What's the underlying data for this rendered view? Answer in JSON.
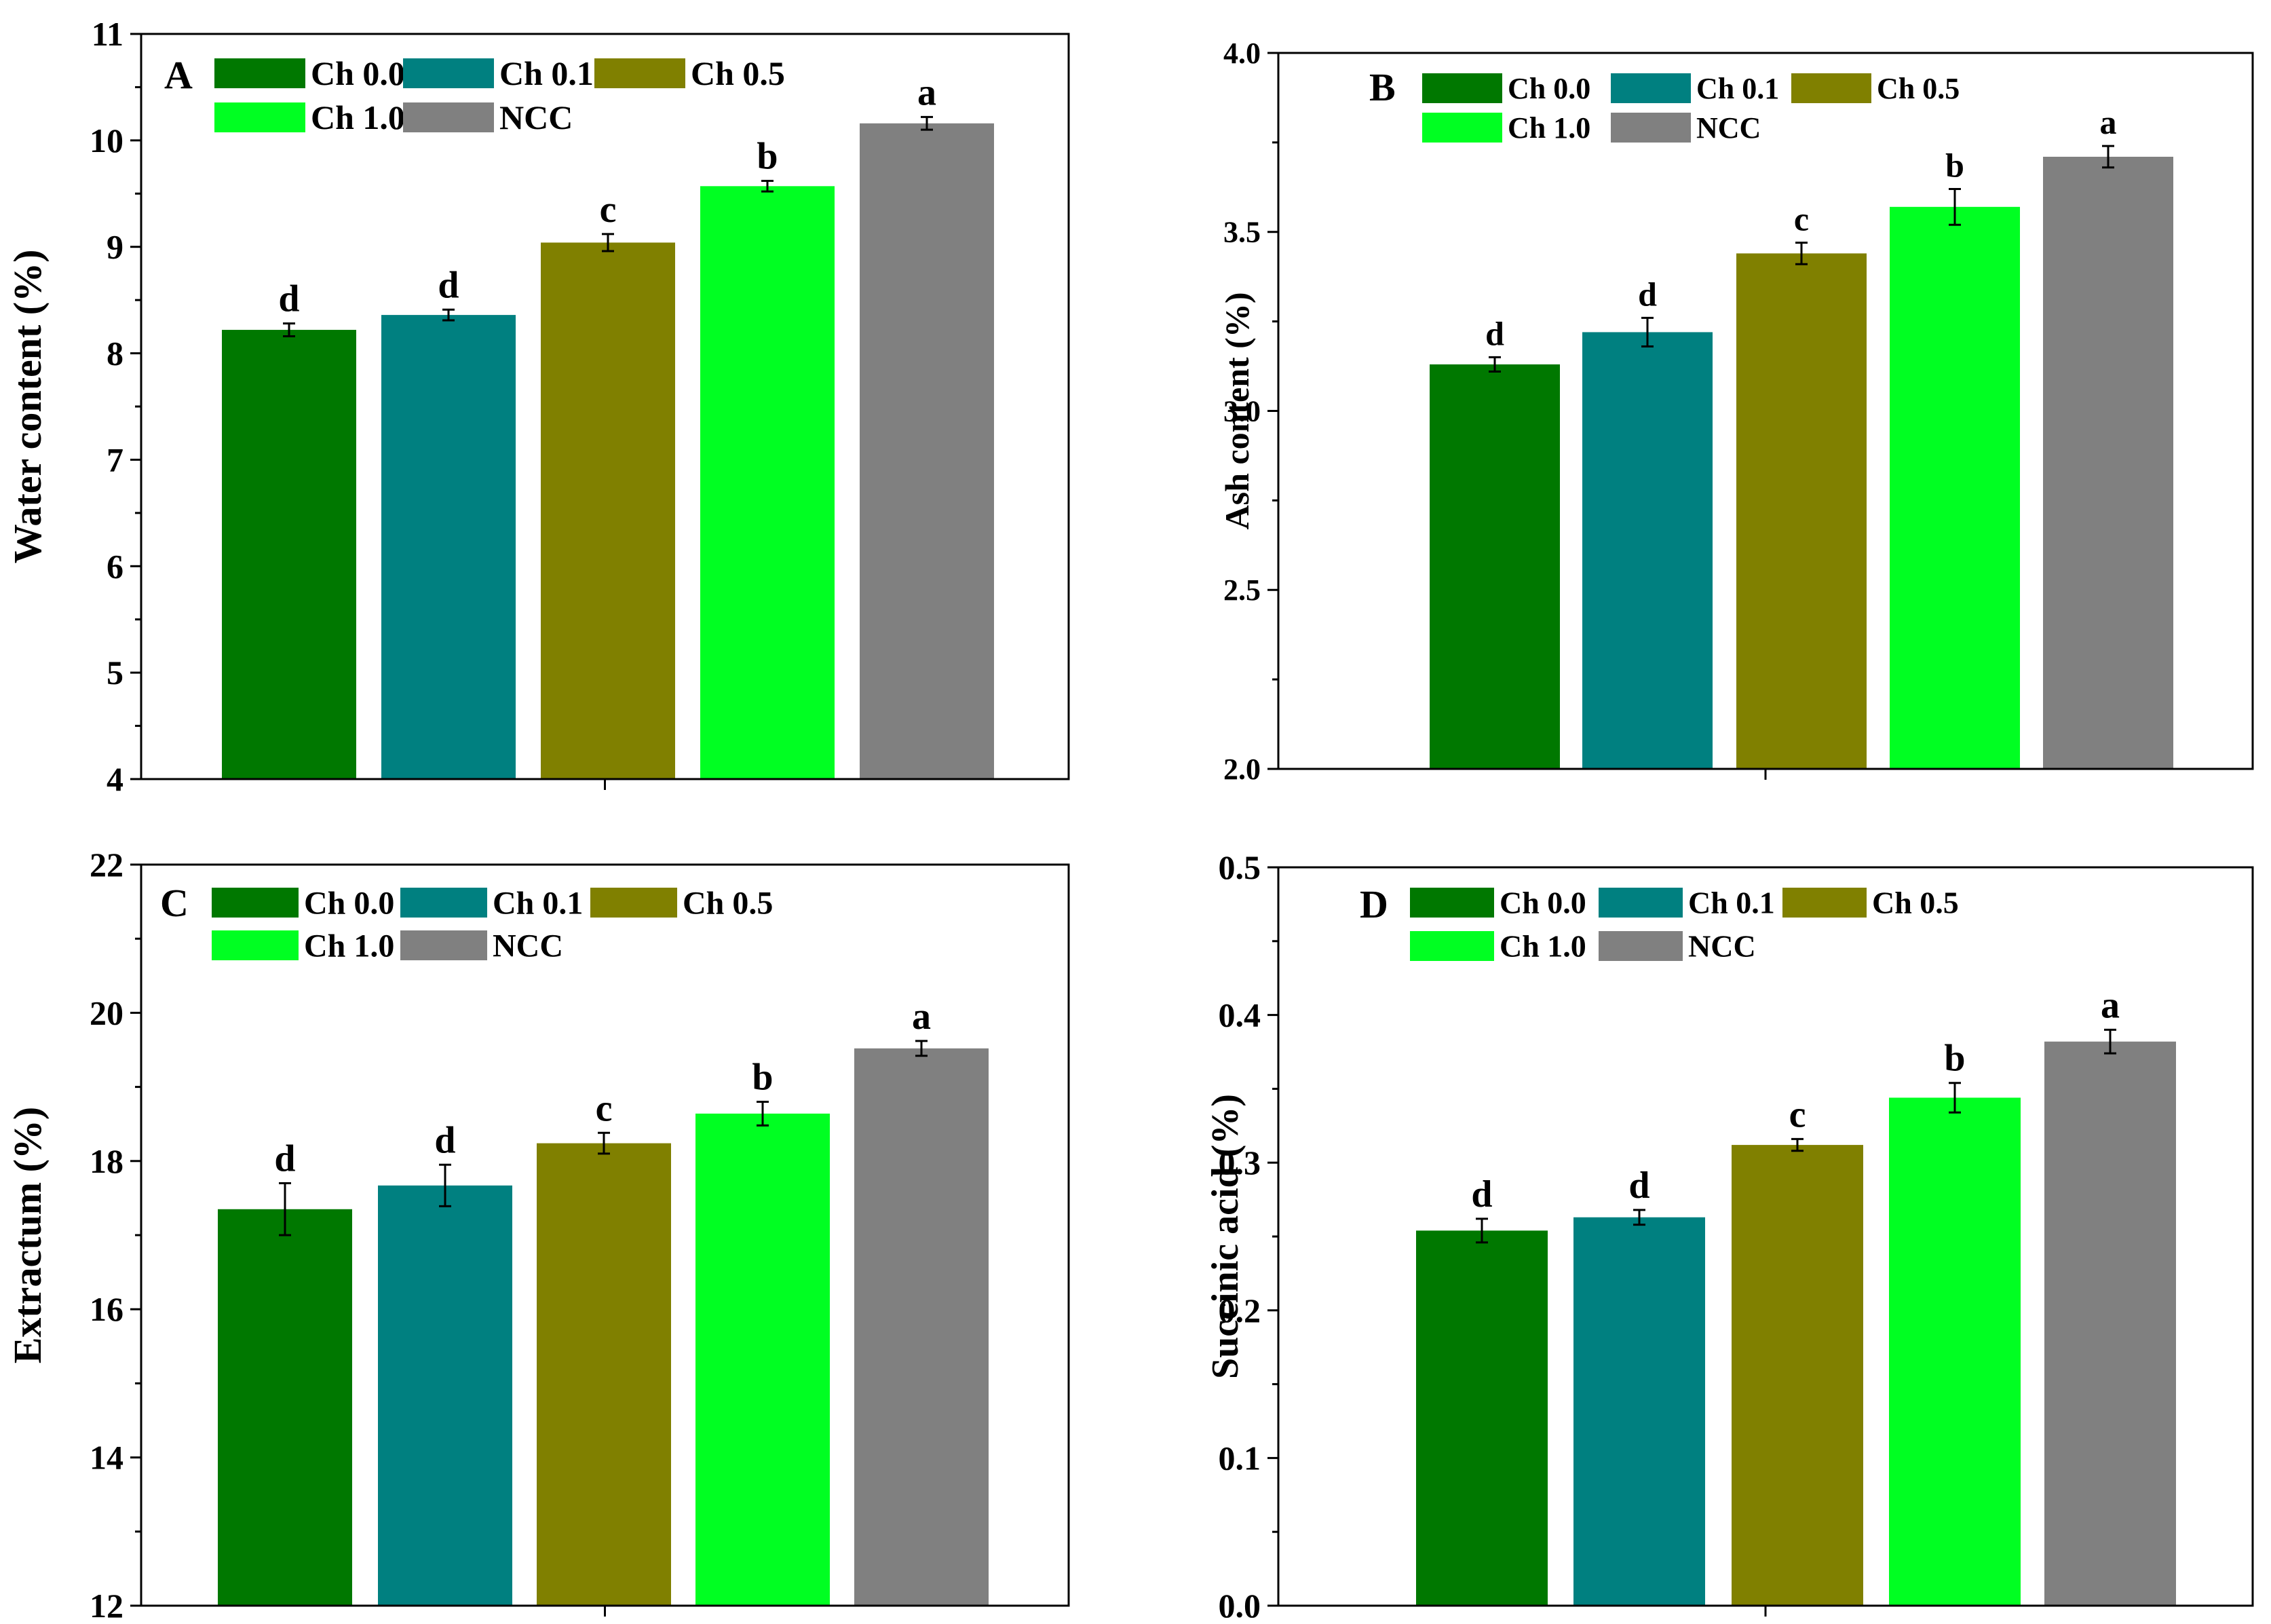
{
  "chart_data": [
    {
      "type": "bar",
      "panel_label": "A",
      "ylabel": "Water content (%)",
      "ylim": [
        4,
        11
      ],
      "yticks": [
        4,
        5,
        6,
        7,
        8,
        9,
        10,
        11
      ],
      "ytick_labels": [
        "4",
        "5",
        "6",
        "7",
        "8",
        "9",
        "10",
        "11"
      ],
      "legend_position": "top-left",
      "series": [
        {
          "name": "Ch 0.0",
          "color": "#007800",
          "value": 8.22,
          "error": 0.06,
          "letter": "d"
        },
        {
          "name": "Ch 0.1",
          "color": "#008080",
          "value": 8.36,
          "error": 0.05,
          "letter": "d"
        },
        {
          "name": "Ch 0.5",
          "color": "#808000",
          "value": 9.04,
          "error": 0.08,
          "letter": "c"
        },
        {
          "name": "Ch 1.0",
          "color": "#00ff22",
          "value": 9.57,
          "error": 0.05,
          "letter": "b"
        },
        {
          "name": "NCC",
          "color": "#808080",
          "value": 10.16,
          "error": 0.06,
          "letter": "a"
        }
      ]
    },
    {
      "type": "bar",
      "panel_label": "B",
      "ylabel": "Ash content (%)",
      "ylim": [
        2.0,
        4.0
      ],
      "yticks": [
        2.0,
        2.5,
        3.0,
        3.5,
        4.0
      ],
      "ytick_labels": [
        "2.0",
        "2.5",
        "3.0",
        "3.5",
        "4.0"
      ],
      "legend_position": "top-left",
      "series": [
        {
          "name": "Ch 0.0",
          "color": "#007800",
          "value": 3.13,
          "error": 0.02,
          "letter": "d"
        },
        {
          "name": "Ch 0.1",
          "color": "#008080",
          "value": 3.22,
          "error": 0.04,
          "letter": "d"
        },
        {
          "name": "Ch 0.5",
          "color": "#808000",
          "value": 3.44,
          "error": 0.03,
          "letter": "c"
        },
        {
          "name": "Ch 1.0",
          "color": "#00ff22",
          "value": 3.57,
          "error": 0.05,
          "letter": "b"
        },
        {
          "name": "NCC",
          "color": "#808080",
          "value": 3.71,
          "error": 0.03,
          "letter": "a"
        }
      ]
    },
    {
      "type": "bar",
      "panel_label": "C",
      "ylabel": "Extractum (%)",
      "ylim": [
        12,
        22
      ],
      "yticks": [
        12,
        14,
        16,
        18,
        20,
        22
      ],
      "ytick_labels": [
        "12",
        "14",
        "16",
        "18",
        "20",
        "22"
      ],
      "legend_position": "top-left",
      "series": [
        {
          "name": "Ch 0.0",
          "color": "#007800",
          "value": 17.35,
          "error": 0.35,
          "letter": "d"
        },
        {
          "name": "Ch 0.1",
          "color": "#008080",
          "value": 17.67,
          "error": 0.28,
          "letter": "d"
        },
        {
          "name": "Ch 0.5",
          "color": "#808000",
          "value": 18.24,
          "error": 0.14,
          "letter": "c"
        },
        {
          "name": "Ch 1.0",
          "color": "#00ff22",
          "value": 18.64,
          "error": 0.16,
          "letter": "b"
        },
        {
          "name": "NCC",
          "color": "#808080",
          "value": 19.52,
          "error": 0.1,
          "letter": "a"
        }
      ]
    },
    {
      "type": "bar",
      "panel_label": "D",
      "ylabel": "Succinic acid (%)",
      "ylim": [
        0.0,
        0.5
      ],
      "yticks": [
        0.0,
        0.1,
        0.2,
        0.3,
        0.4,
        0.5
      ],
      "ytick_labels": [
        "0.0",
        "0.1",
        "0.2",
        "0.3",
        "0.4",
        "0.5"
      ],
      "legend_position": "top-left",
      "series": [
        {
          "name": "Ch 0.0",
          "color": "#007800",
          "value": 0.254,
          "error": 0.008,
          "letter": "d"
        },
        {
          "name": "Ch 0.1",
          "color": "#008080",
          "value": 0.263,
          "error": 0.005,
          "letter": "d"
        },
        {
          "name": "Ch 0.5",
          "color": "#808000",
          "value": 0.312,
          "error": 0.004,
          "letter": "c"
        },
        {
          "name": "Ch 1.0",
          "color": "#00ff22",
          "value": 0.344,
          "error": 0.01,
          "letter": "b"
        },
        {
          "name": "NCC",
          "color": "#808080",
          "value": 0.382,
          "error": 0.008,
          "letter": "a"
        }
      ]
    }
  ]
}
